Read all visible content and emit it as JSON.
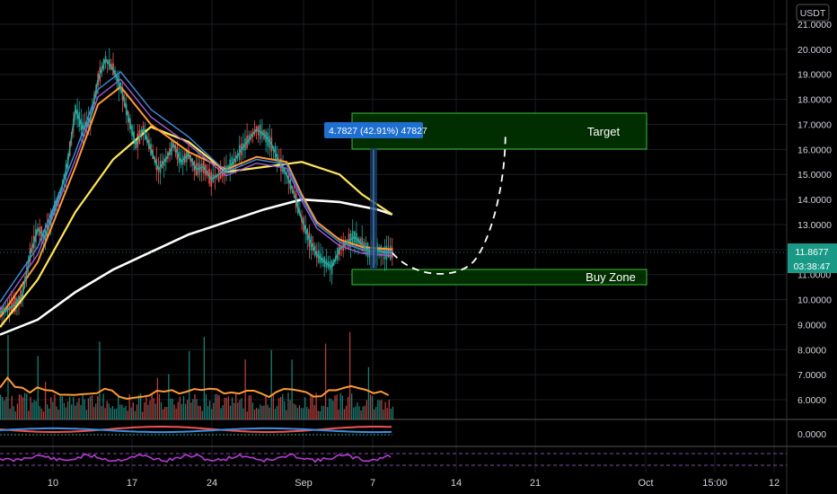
{
  "chart_data": {
    "type": "candlestick",
    "currency": "USDT",
    "price_axis": {
      "ticks": [
        "21.0000",
        "20.0000",
        "19.0000",
        "18.0000",
        "17.0000",
        "16.0000",
        "15.0000",
        "14.0000",
        "13.0000",
        "12.0000",
        "11.0000",
        "10.0000",
        "9.0000",
        "8.0000",
        "7.0000",
        "6.0000"
      ],
      "min": 5.6,
      "max": 21.2
    },
    "oscillator_axis": {
      "ticks": [
        "0.0000"
      ]
    },
    "time_axis": {
      "ticks": [
        "10",
        "17",
        "24",
        "Sep",
        "7",
        "14",
        "21",
        "Oct",
        "15:00",
        "12"
      ]
    },
    "price_series": {
      "name": "price",
      "x": [
        0,
        2,
        4,
        6,
        8,
        10,
        12,
        14,
        16,
        18,
        20,
        22,
        24,
        26,
        28,
        30,
        32,
        34,
        36,
        38,
        40,
        42,
        44,
        46,
        48,
        50,
        52,
        54,
        56,
        58,
        60,
        62,
        64,
        66,
        68,
        70,
        72,
        74,
        76,
        78,
        80,
        82,
        84,
        86,
        88,
        90,
        92,
        94,
        96,
        98,
        100,
        102,
        104
      ],
      "y": [
        9.5,
        9.6,
        9.8,
        10.2,
        11.8,
        12.8,
        12.5,
        13.5,
        14.2,
        15.5,
        17.6,
        16.8,
        17.2,
        18.8,
        19.6,
        19.2,
        18.5,
        17.3,
        16.2,
        16.8,
        16.0,
        15.2,
        15.6,
        16.2,
        15.5,
        15.8,
        15.2,
        15.3,
        14.8,
        15.0,
        15.2,
        15.5,
        16.0,
        16.4,
        16.8,
        16.6,
        16.2,
        15.5,
        15.0,
        14.2,
        13.2,
        12.4,
        11.8,
        11.5,
        11.3,
        12.0,
        12.3,
        12.5,
        12.2,
        11.9,
        12.0,
        11.87,
        11.87
      ]
    },
    "ma_white": {
      "x": [
        0,
        10,
        20,
        30,
        40,
        50,
        60,
        70,
        80,
        90,
        100,
        104
      ],
      "y": [
        8.6,
        9.2,
        10.3,
        11.2,
        11.9,
        12.6,
        13.1,
        13.6,
        14.0,
        13.9,
        13.6,
        13.4
      ]
    },
    "ma_yellow": {
      "x": [
        0,
        10,
        20,
        30,
        40,
        50,
        60,
        70,
        80,
        90,
        96,
        104
      ],
      "y": [
        8.9,
        10.8,
        13.5,
        15.6,
        16.9,
        16.3,
        15.1,
        15.3,
        15.5,
        15.0,
        14.2,
        13.4
      ]
    },
    "ma_orange": {
      "x": [
        0,
        10,
        20,
        26,
        32,
        40,
        50,
        60,
        68,
        76,
        80,
        84,
        90,
        96,
        104
      ],
      "y": [
        9.3,
        11.5,
        15.3,
        17.8,
        18.5,
        17.0,
        15.9,
        15.2,
        15.7,
        15.5,
        14.2,
        13.1,
        12.4,
        12.1,
        12.0
      ]
    },
    "projection": {
      "x": [
        104,
        110,
        116,
        122,
        128,
        134
      ],
      "y": [
        11.87,
        11.0,
        10.95,
        11.3,
        13.2,
        16.7
      ]
    },
    "target_zone": {
      "label": "Target",
      "low": 16.0,
      "high": 17.4
    },
    "buy_zone": {
      "label": "Buy Zone",
      "low": 10.6,
      "high": 11.25
    },
    "measurement": {
      "label": "4.7827 (42.91%) 47827",
      "from": 11.2,
      "to": 16.0
    },
    "current_price": {
      "value": "11.8677",
      "countdown": "03:38:47",
      "color": "#26a69a"
    },
    "volume_panel": {
      "up_color": "#26a69a",
      "down_color": "#ef5350",
      "ma_color": "#ff9800"
    },
    "colors": {
      "price": "#26a69a",
      "price_down": "#ef5350",
      "ma_white": "#ffffff",
      "ma_yellow": "#ffe55c",
      "ma_orange": "#ff9933",
      "zone_fill": "#003b00",
      "zone_border": "#3bbf3b",
      "measurement_box": "#1e5fbf",
      "osc_purple": "#b43bd4"
    }
  }
}
